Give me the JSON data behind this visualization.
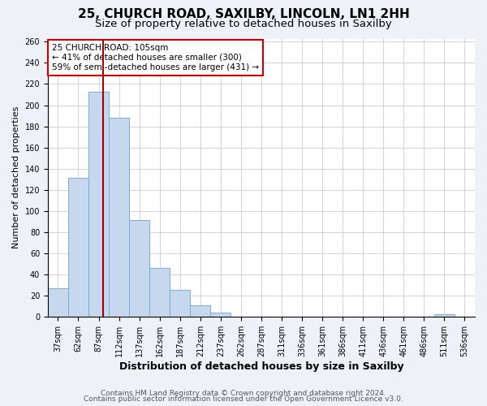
{
  "title1": "25, CHURCH ROAD, SAXILBY, LINCOLN, LN1 2HH",
  "title2": "Size of property relative to detached houses in Saxilby",
  "xlabel": "Distribution of detached houses by size in Saxilby",
  "ylabel": "Number of detached properties",
  "bar_color": "#c5d8ed",
  "bar_edge_color": "#7aaed6",
  "bin_labels": [
    "37sqm",
    "62sqm",
    "87sqm",
    "112sqm",
    "137sqm",
    "162sqm",
    "187sqm",
    "212sqm",
    "237sqm",
    "262sqm",
    "287sqm",
    "311sqm",
    "336sqm",
    "361sqm",
    "386sqm",
    "411sqm",
    "436sqm",
    "461sqm",
    "486sqm",
    "511sqm",
    "536sqm"
  ],
  "bar_heights": [
    27,
    131,
    213,
    188,
    91,
    46,
    25,
    11,
    4,
    0,
    0,
    0,
    0,
    0,
    0,
    0,
    0,
    0,
    0,
    2,
    0
  ],
  "ylim_max": 263,
  "yticks": [
    0,
    20,
    40,
    60,
    80,
    100,
    120,
    140,
    160,
    180,
    200,
    220,
    240,
    260
  ],
  "annotation_title": "25 CHURCH ROAD: 105sqm",
  "annotation_line1": "← 41% of detached houses are smaller (300)",
  "annotation_line2": "59% of semi-detached houses are larger (431) →",
  "footer_line1": "Contains HM Land Registry data © Crown copyright and database right 2024.",
  "footer_line2": "Contains public sector information licensed under the Open Government Licence v3.0.",
  "background_color": "#eef2f8",
  "plot_bg_color": "#ffffff",
  "grid_color": "#c8cdd6",
  "vline_color": "#aa0000",
  "title1_fontsize": 11,
  "title2_fontsize": 9.5,
  "xlabel_fontsize": 9,
  "ylabel_fontsize": 8,
  "tick_fontsize": 7,
  "footer_fontsize": 6.5,
  "vline_pos": 2.22
}
